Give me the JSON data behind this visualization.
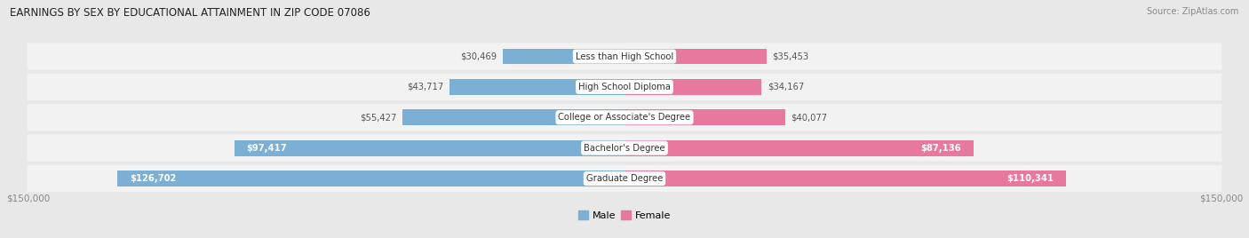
{
  "title": "EARNINGS BY SEX BY EDUCATIONAL ATTAINMENT IN ZIP CODE 07086",
  "source": "Source: ZipAtlas.com",
  "categories": [
    "Less than High School",
    "High School Diploma",
    "College or Associate's Degree",
    "Bachelor's Degree",
    "Graduate Degree"
  ],
  "male_values": [
    30469,
    43717,
    55427,
    97417,
    126702
  ],
  "female_values": [
    35453,
    34167,
    40077,
    87136,
    110341
  ],
  "max_value": 150000,
  "male_color": "#7bafd4",
  "female_color": "#e8799e",
  "bg_color": "#e8e8e8",
  "row_bg_color": "#f2f2f2",
  "axis_label_left": "$150,000",
  "axis_label_right": "$150,000"
}
